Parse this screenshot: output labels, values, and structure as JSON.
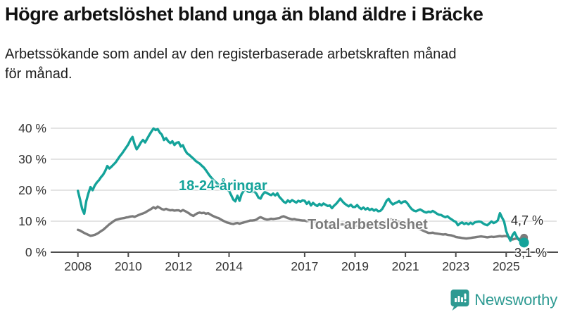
{
  "header": {
    "title": "Högre arbetslöshet bland unga än bland äldre i Bräcke",
    "subtitle_line1": "Arbetssökande som andel av den registerbaserade arbetskraften månad",
    "subtitle_line2": "för månad."
  },
  "annotations": {
    "youth_label": "18-24-åringar",
    "total_label": "Total arbetslöshet",
    "total_end_value": "4,7 %",
    "youth_end_value": "3,1 %"
  },
  "footer": {
    "brand": "Newsworthy"
  },
  "colors": {
    "youth_line": "#14a39a",
    "total_line": "#7b7b7b",
    "grid": "#dcdcdc",
    "axis": "#4d4d4d",
    "tick_text": "#333333",
    "brand": "#2d9a92"
  },
  "chart_data": {
    "type": "line",
    "title": "Högre arbetslöshet bland unga än bland äldre i Bräcke",
    "xlabel": "",
    "ylabel": "Arbetssökande som andel av den registerbaserade arbetskraften",
    "unit": "%",
    "grid": "horizontal",
    "legend_position": "inline-labels",
    "x_start_year": 2008,
    "x_start_month": 1,
    "x_end_year": 2025,
    "x_end_month": 9,
    "x_ticks": [
      2008,
      2010,
      2012,
      2014,
      2017,
      2019,
      2021,
      2023,
      2025
    ],
    "y_ticks": [
      0,
      10,
      20,
      30,
      40
    ],
    "y_tick_labels": [
      "0 %",
      "10 %",
      "20 %",
      "30 %",
      "40 %"
    ],
    "ylim": [
      0,
      42
    ],
    "series": [
      {
        "name": "Total arbetslöshet",
        "color": "#7b7b7b",
        "end_label": "4,7 %",
        "end_value": 4.7,
        "values": [
          7.2,
          7.0,
          6.6,
          6.2,
          5.9,
          5.6,
          5.3,
          5.4,
          5.6,
          5.9,
          6.3,
          6.8,
          7.2,
          7.8,
          8.4,
          9.0,
          9.5,
          10.0,
          10.4,
          10.6,
          10.8,
          10.9,
          11.0,
          11.2,
          11.3,
          11.5,
          11.6,
          11.4,
          11.7,
          12.0,
          12.3,
          12.5,
          12.8,
          13.2,
          13.6,
          14.0,
          14.5,
          14.1,
          14.7,
          14.3,
          13.9,
          13.7,
          14.0,
          13.7,
          13.5,
          13.6,
          13.4,
          13.5,
          13.5,
          13.2,
          13.6,
          13.3,
          12.9,
          12.5,
          12.0,
          11.7,
          12.2,
          12.6,
          12.8,
          12.6,
          12.7,
          12.4,
          12.6,
          12.2,
          11.8,
          11.5,
          11.2,
          11.0,
          10.6,
          10.2,
          9.9,
          9.6,
          9.4,
          9.2,
          9.1,
          9.3,
          9.4,
          9.2,
          9.4,
          9.6,
          9.8,
          10.0,
          10.2,
          10.2,
          10.3,
          10.5,
          11.0,
          11.3,
          11.0,
          10.7,
          10.5,
          10.6,
          10.8,
          10.7,
          10.8,
          10.9,
          11.0,
          11.4,
          11.6,
          11.3,
          11.0,
          10.8,
          10.6,
          10.7,
          10.5,
          10.4,
          10.3,
          10.2,
          10.2,
          10.0,
          10.1,
          9.9,
          9.8,
          9.7,
          9.6,
          9.7,
          9.5,
          9.6,
          9.4,
          9.5,
          9.4,
          9.2,
          9.3,
          9.1,
          9.0,
          8.9,
          9.0,
          8.8,
          8.7,
          8.8,
          8.6,
          8.7,
          8.6,
          8.5,
          8.6,
          8.4,
          8.3,
          8.4,
          8.5,
          8.3,
          8.2,
          8.3,
          8.4,
          8.5,
          8.6,
          8.8,
          9.3,
          10.0,
          10.4,
          10.6,
          10.5,
          10.3,
          10.0,
          9.8,
          9.6,
          9.5,
          9.4,
          9.2,
          9.0,
          8.7,
          8.4,
          8.0,
          7.7,
          7.4,
          7.1,
          6.8,
          6.5,
          6.2,
          6.2,
          6.3,
          6.1,
          6.0,
          5.9,
          5.8,
          5.7,
          5.8,
          5.6,
          5.5,
          5.4,
          5.2,
          4.9,
          4.8,
          4.7,
          4.6,
          4.5,
          4.4,
          4.5,
          4.6,
          4.7,
          4.8,
          4.9,
          5.0,
          5.1,
          5.0,
          4.9,
          4.8,
          4.9,
          5.0,
          4.9,
          5.0,
          5.1,
          5.2,
          5.1,
          5.2,
          5.2,
          5.0,
          4.6,
          4.1,
          4.3,
          4.4,
          4.2,
          4.4,
          4.7
        ]
      },
      {
        "name": "18-24-åringar",
        "color": "#14a39a",
        "end_label": "3,1 %",
        "end_value": 3.1,
        "values": [
          19.8,
          17.0,
          14.0,
          12.4,
          16.5,
          19.0,
          21.0,
          20.0,
          21.5,
          22.5,
          23.2,
          24.2,
          25.0,
          26.2,
          27.8,
          27.0,
          27.6,
          28.3,
          29.0,
          30.0,
          31.0,
          31.8,
          32.8,
          33.8,
          34.8,
          36.2,
          37.2,
          34.8,
          33.2,
          34.2,
          35.4,
          36.2,
          35.4,
          36.6,
          37.8,
          38.9,
          39.9,
          39.4,
          39.7,
          38.6,
          37.9,
          36.2,
          36.8,
          35.8,
          35.2,
          35.8,
          34.6,
          35.3,
          35.5,
          34.1,
          34.5,
          33.0,
          31.9,
          31.4,
          30.8,
          30.2,
          29.5,
          29.0,
          28.6,
          27.9,
          27.3,
          26.4,
          25.4,
          24.5,
          23.7,
          23.0,
          22.4,
          21.8,
          21.4,
          21.0,
          20.6,
          20.2,
          19.8,
          18.4,
          17.0,
          16.4,
          18.2,
          16.6,
          18.8,
          19.8,
          20.2,
          19.8,
          19.6,
          19.4,
          19.6,
          18.9,
          17.6,
          17.3,
          18.6,
          19.4,
          19.1,
          18.7,
          18.4,
          18.9,
          18.3,
          19.0,
          17.8,
          17.1,
          16.3,
          15.9,
          16.7,
          16.2,
          16.8,
          16.4,
          16.0,
          16.6,
          16.3,
          16.7,
          16.6,
          15.6,
          16.3,
          15.1,
          15.9,
          15.3,
          14.9,
          15.6,
          15.1,
          15.7,
          15.3,
          14.9,
          15.1,
          14.2,
          15.0,
          15.6,
          16.4,
          17.3,
          16.4,
          15.7,
          15.2,
          14.8,
          15.3,
          14.6,
          14.6,
          15.2,
          14.4,
          13.9,
          14.4,
          13.8,
          14.2,
          13.6,
          14.0,
          13.4,
          13.8,
          13.2,
          13.3,
          14.0,
          15.2,
          16.6,
          17.2,
          16.1,
          15.4,
          15.8,
          16.1,
          16.5,
          15.8,
          16.3,
          16.4,
          15.7,
          14.7,
          13.9,
          13.4,
          13.2,
          13.5,
          13.8,
          13.4,
          13.0,
          12.8,
          13.1,
          12.9,
          13.3,
          12.9,
          12.4,
          12.1,
          12.0,
          11.6,
          11.3,
          11.6,
          11.0,
          10.6,
          10.1,
          9.8,
          8.7,
          9.3,
          9.6,
          9.1,
          9.4,
          9.0,
          9.5,
          9.1,
          9.6,
          9.8,
          9.9,
          9.8,
          9.3,
          8.9,
          8.7,
          9.3,
          9.9,
          9.4,
          9.7,
          10.3,
          12.6,
          11.2,
          9.9,
          6.8,
          5.1,
          3.7,
          5.5,
          6.4,
          5.0,
          4.0,
          3.5,
          3.1
        ]
      }
    ]
  }
}
